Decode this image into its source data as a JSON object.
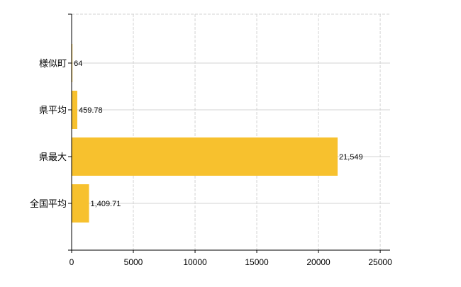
{
  "chart_data": {
    "type": "bar",
    "orientation": "horizontal",
    "title": "",
    "xlabel": "",
    "ylabel": "",
    "categories": [
      "様似町",
      "県平均",
      "県最大",
      "全国平均"
    ],
    "values": [
      64,
      459.78,
      21549,
      1409.71
    ],
    "value_labels": [
      "64",
      "459.78",
      "21,549",
      "1,409.71"
    ],
    "xlim": [
      0,
      25800
    ],
    "xticks": [
      0,
      5000,
      10000,
      15000,
      20000,
      25000
    ],
    "xtick_labels": [
      "0",
      "5000",
      "10000",
      "15000",
      "20000",
      "25000"
    ],
    "grid": true,
    "legend": "none",
    "bar_color": "#F7C12E",
    "grid_color": "#D3D3D3"
  }
}
